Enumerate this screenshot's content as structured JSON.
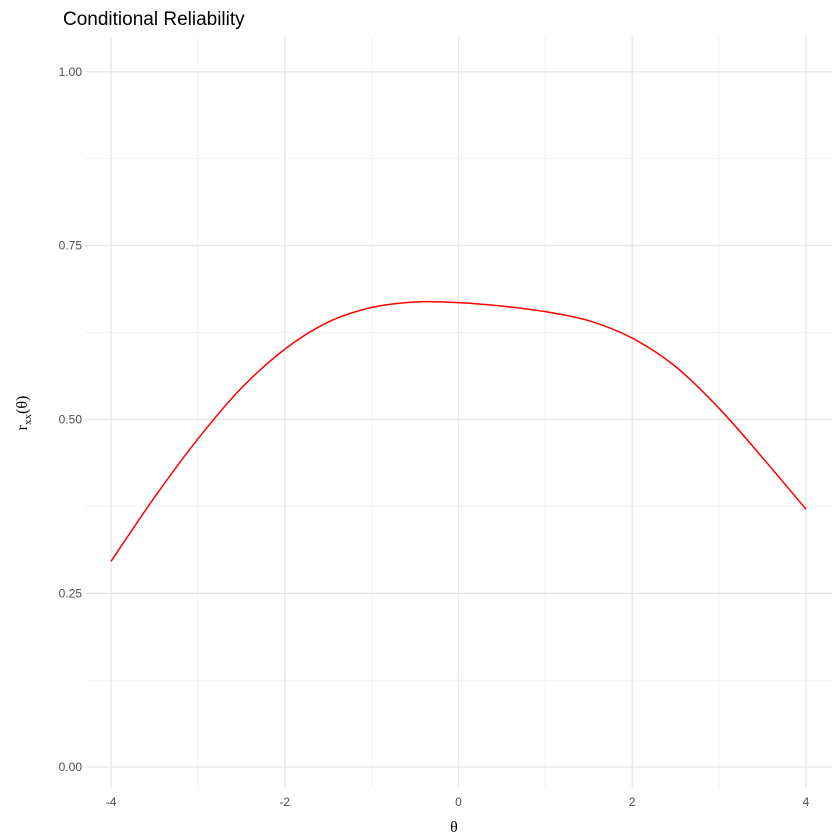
{
  "chart_data": {
    "type": "line",
    "title": "Conditional Reliability",
    "xlabel": "θ",
    "ylabel": {
      "main": "r",
      "subscript": "xx",
      "suffix": "(θ)"
    },
    "xlim": [
      -4.3,
      4.3
    ],
    "ylim": [
      -0.03,
      1.05
    ],
    "x_ticks": [
      -4,
      -2,
      0,
      2,
      4
    ],
    "x_tick_labels": [
      "-4",
      "-2",
      "0",
      "2",
      "4"
    ],
    "x_minor_ticks": [
      -3,
      -1,
      1,
      3
    ],
    "y_ticks": [
      0,
      0.25,
      0.5,
      0.75,
      1
    ],
    "y_tick_labels": [
      "0.00",
      "0.25",
      "0.50",
      "0.75",
      "1.00"
    ],
    "y_minor_ticks": [
      0.125,
      0.375,
      0.625,
      0.875
    ],
    "grid": true,
    "series": [
      {
        "color": "#ff0000",
        "x": [
          -4,
          -3.5,
          -3,
          -2.5,
          -2,
          -1.5,
          -1,
          -0.5,
          0,
          0.5,
          1,
          1.5,
          2,
          2.5,
          3,
          3.5,
          4
        ],
        "y": [
          0.296,
          0.388,
          0.472,
          0.545,
          0.601,
          0.64,
          0.661,
          0.669,
          0.668,
          0.663,
          0.655,
          0.642,
          0.617,
          0.576,
          0.516,
          0.445,
          0.371
        ]
      }
    ]
  }
}
